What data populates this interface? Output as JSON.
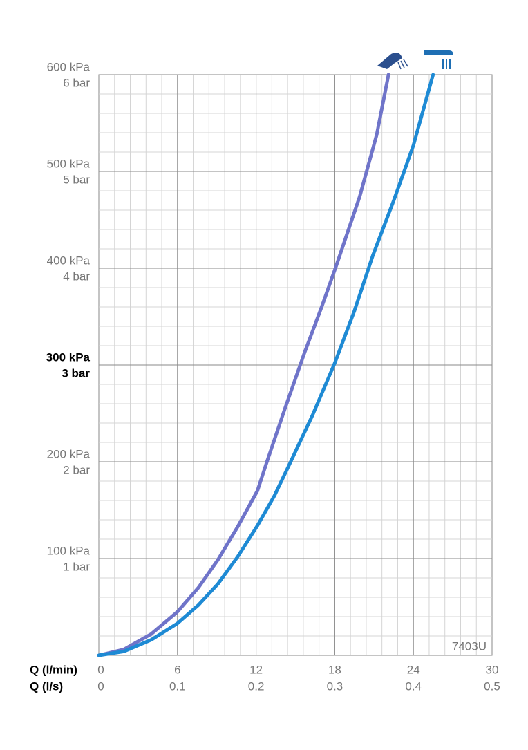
{
  "chart_data": {
    "type": "line",
    "xlabel": "Q (l/min)",
    "x2label": "Q (l/s)",
    "xlim": [
      0,
      30
    ],
    "xticks": [
      0,
      6,
      12,
      18,
      24,
      30
    ],
    "x2lim": [
      0,
      0.5
    ],
    "x2ticks": [
      0,
      0.1,
      0.2,
      0.3,
      0.4,
      0.5
    ],
    "ylim": [
      0,
      600
    ],
    "yticks": [
      {
        "value": 100,
        "label": "100 kPa"
      },
      {
        "value": 200,
        "label": "200 kPa"
      },
      {
        "value": 300,
        "label": "300 kPa"
      },
      {
        "value": 400,
        "label": "400 kPa"
      },
      {
        "value": 500,
        "label": "500 kPa"
      },
      {
        "value": 600,
        "label": "600 kPa"
      }
    ],
    "yticks_bar": [
      {
        "value": 100,
        "label": "1 bar"
      },
      {
        "value": 200,
        "label": "2 bar"
      },
      {
        "value": 300,
        "label": "3 bar"
      },
      {
        "value": 400,
        "label": "4 bar"
      },
      {
        "value": 500,
        "label": "5 bar"
      },
      {
        "value": 600,
        "label": "6 bar"
      }
    ],
    "highlight_ytick": 300,
    "grid": true,
    "annotation": "7403U",
    "series": [
      {
        "color": "#6f74c9",
        "x": [
          0,
          1.9,
          4,
          6,
          7.6,
          9.1,
          10.6,
          12.1,
          12.8,
          14.2,
          15.7,
          17,
          18.1,
          19.9,
          21.2,
          22.1
        ],
        "values": [
          0,
          6,
          22,
          45,
          70,
          99,
          133,
          170,
          199,
          255,
          313,
          360,
          402,
          474,
          538,
          600
        ]
      },
      {
        "color": "#1e8ad4",
        "x": [
          0,
          1.9,
          4,
          6,
          7.6,
          9.1,
          10.6,
          12.1,
          13.4,
          14.6,
          16.3,
          18,
          19.5,
          20.9,
          22.5,
          24,
          25.5
        ],
        "values": [
          0,
          4,
          16,
          33,
          52,
          74,
          102,
          134,
          165,
          199,
          248,
          302,
          356,
          413,
          470,
          527,
          600
        ]
      }
    ]
  }
}
